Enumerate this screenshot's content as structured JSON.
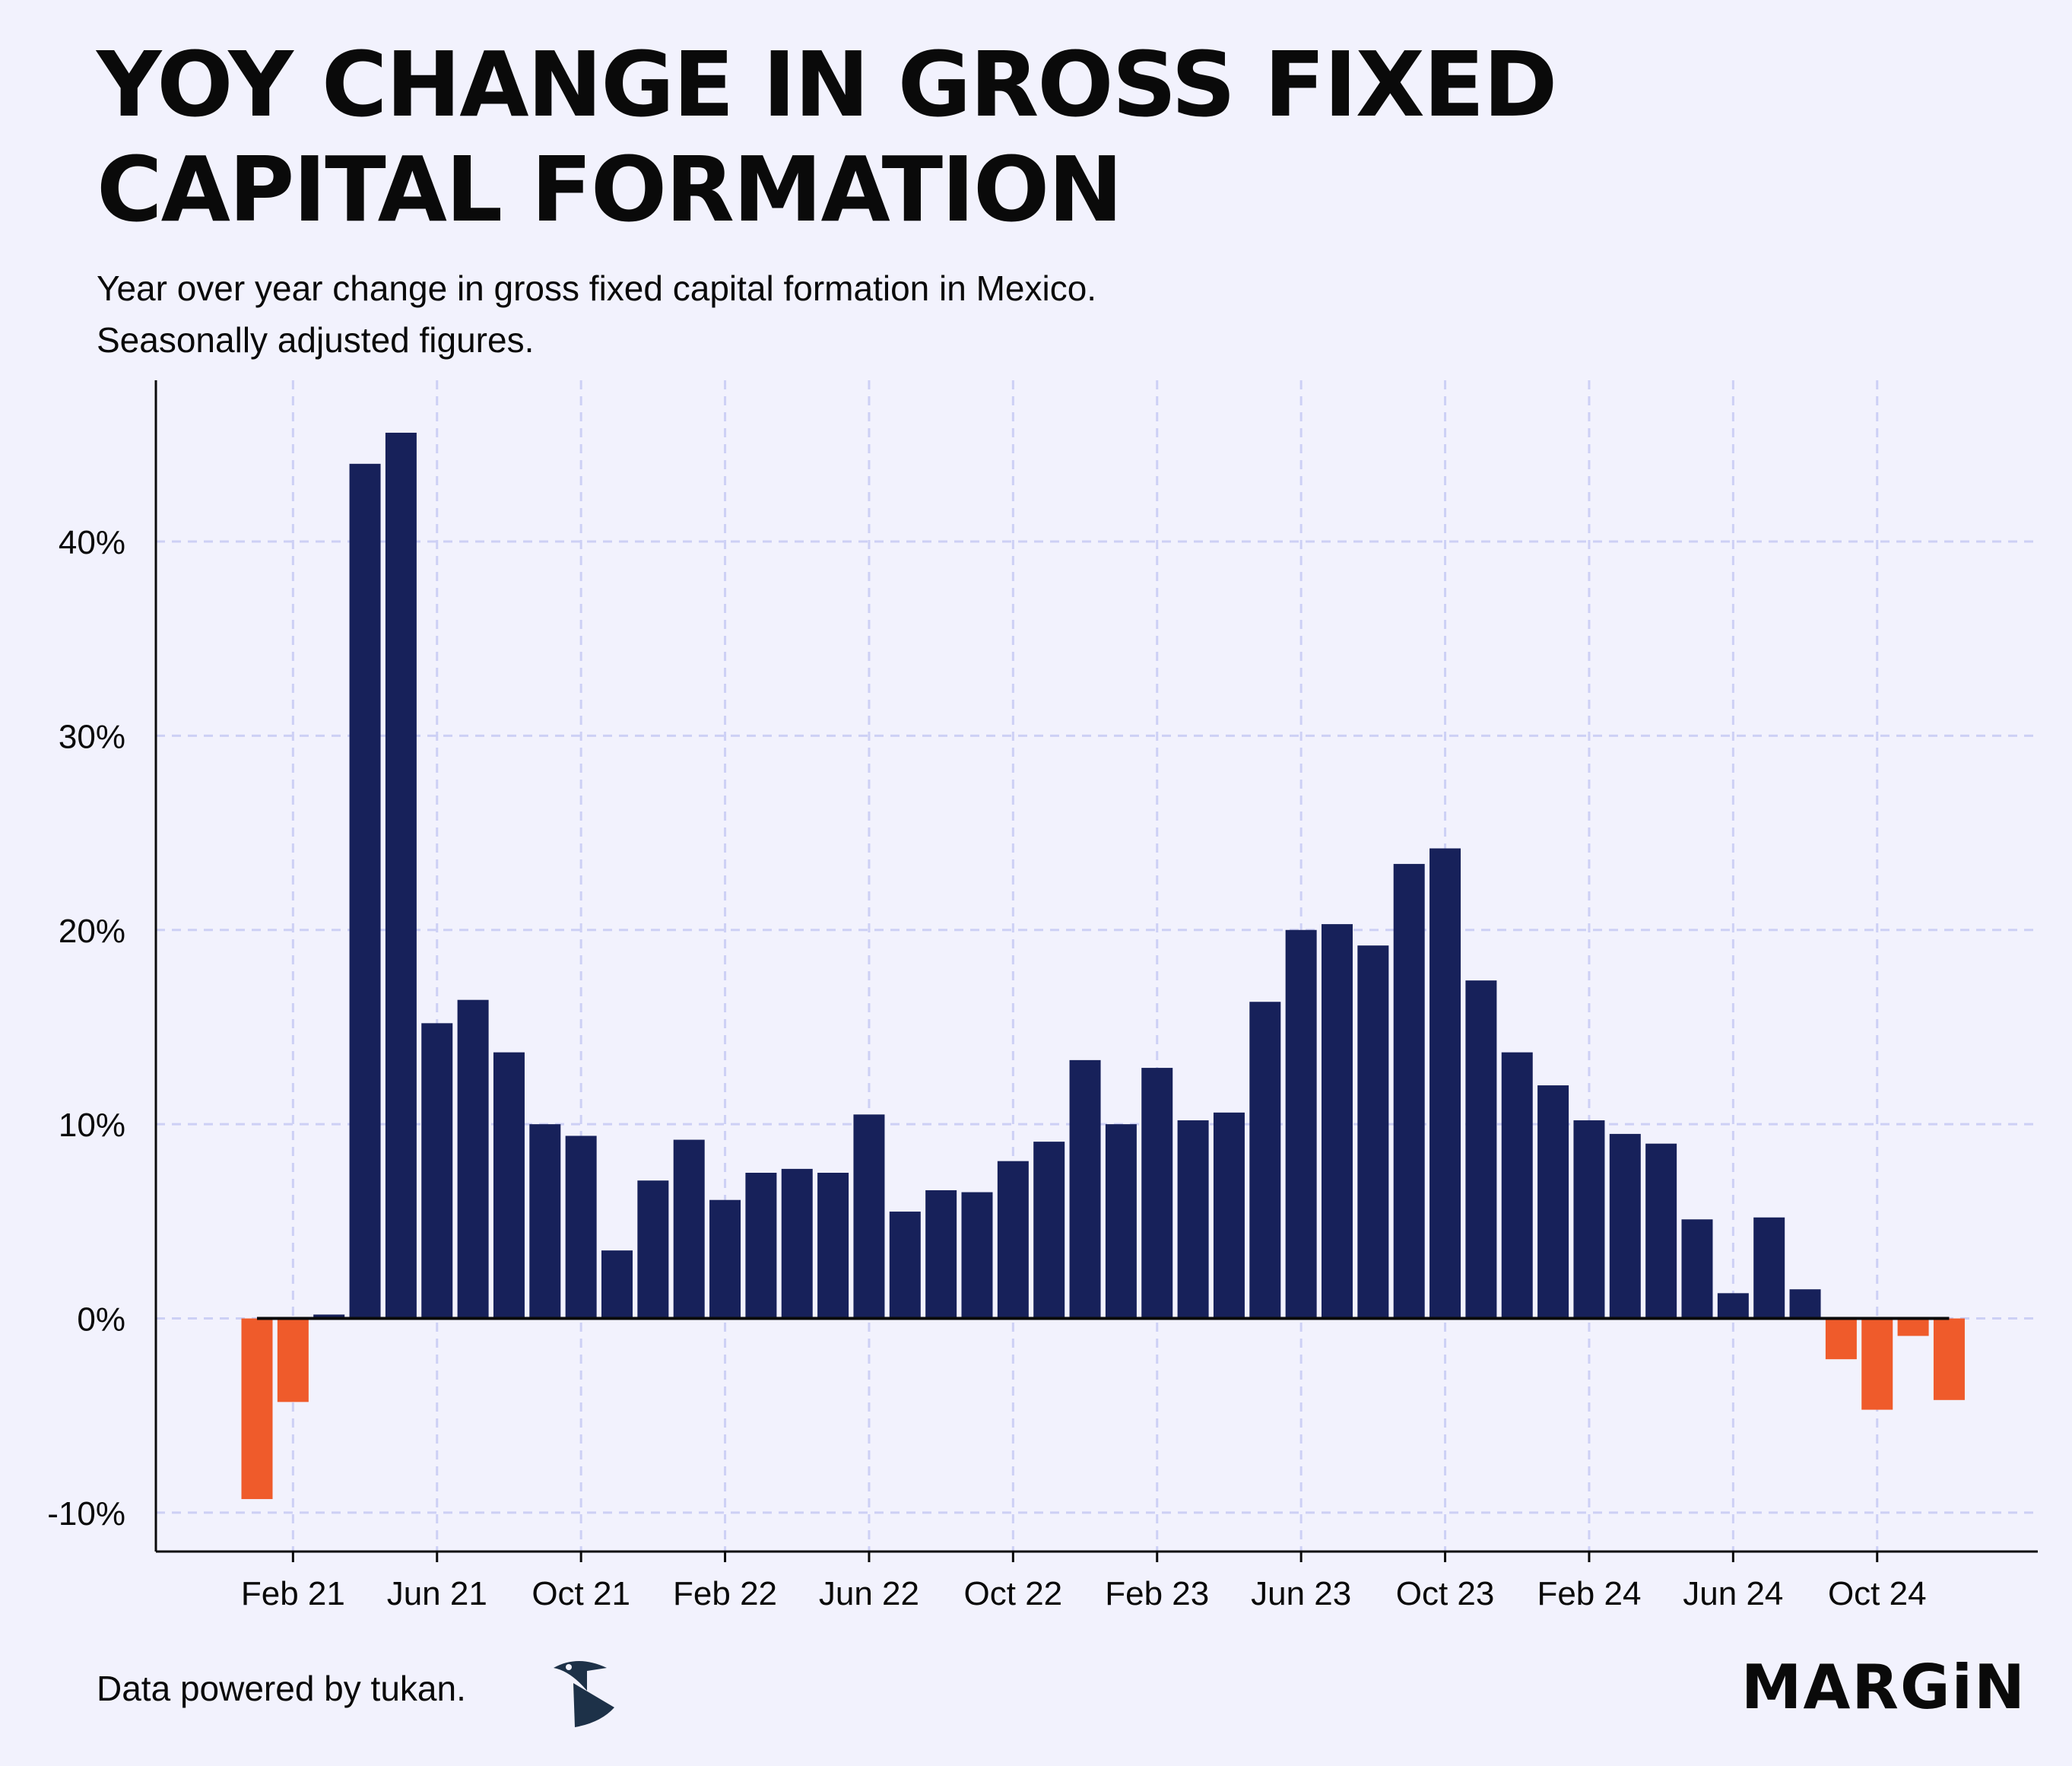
{
  "title_line1": "YOY CHANGE IN GROSS FIXED",
  "title_line2": "CAPITAL FORMATION",
  "subtitle_line1": "Year over year change in gross fixed capital formation in Mexico.",
  "subtitle_line2": "Seasonally adjusted figures.",
  "footer": {
    "source_text": "Data powered by tukan.",
    "brand_text": "MARGiN",
    "source_logo_icon": "tukan-logo-icon"
  },
  "colors": {
    "background": "#f2f2fd",
    "positive": "#17215a",
    "negative": "#ef5b2b",
    "grid": "#cdd0f5",
    "axis": "#0a0a0a"
  },
  "chart_data": {
    "type": "bar",
    "title": "YOY CHANGE IN GROSS FIXED CAPITAL FORMATION",
    "xlabel": "",
    "ylabel": "",
    "ylim": [
      -12,
      48.3
    ],
    "grid": true,
    "y_ticks": [
      -10,
      0,
      10,
      20,
      30,
      40
    ],
    "y_tick_labels": [
      "-10%",
      "0%",
      "10%",
      "20%",
      "30%",
      "40%"
    ],
    "x_tick_labels": [
      "Feb 21",
      "Jun 21",
      "Oct 21",
      "Feb 22",
      "Jun 22",
      "Oct 22",
      "Feb 23",
      "Jun 23",
      "Oct 23",
      "Feb 24",
      "Jun 24",
      "Oct 24"
    ],
    "x_tick_month_index": [
      1,
      5,
      9,
      13,
      17,
      21,
      25,
      29,
      33,
      37,
      41,
      45
    ],
    "categories": [
      "Jan 21",
      "Feb 21",
      "Mar 21",
      "Apr 21",
      "May 21",
      "Jun 21",
      "Jul 21",
      "Aug 21",
      "Sep 21",
      "Oct 21",
      "Nov 21",
      "Dec 21",
      "Jan 22",
      "Feb 22",
      "Mar 22",
      "Apr 22",
      "May 22",
      "Jun 22",
      "Jul 22",
      "Aug 22",
      "Sep 22",
      "Oct 22",
      "Nov 22",
      "Dec 22",
      "Jan 23",
      "Feb 23",
      "Mar 23",
      "Apr 23",
      "May 23",
      "Jun 23",
      "Jul 23",
      "Aug 23",
      "Sep 23",
      "Oct 23",
      "Nov 23",
      "Dec 23",
      "Jan 24",
      "Feb 24",
      "Mar 24",
      "Apr 24",
      "May 24",
      "Jun 24",
      "Jul 24",
      "Aug 24",
      "Sep 24",
      "Oct 24",
      "Nov 24",
      "Dec 24"
    ],
    "values": [
      -9.3,
      -4.3,
      0.2,
      44.0,
      45.6,
      15.2,
      16.4,
      13.7,
      10.0,
      9.4,
      3.5,
      7.1,
      9.2,
      6.1,
      7.5,
      7.7,
      7.5,
      10.5,
      5.5,
      6.6,
      6.5,
      8.1,
      9.1,
      13.3,
      10.0,
      12.9,
      10.2,
      10.6,
      16.3,
      20.0,
      20.3,
      19.2,
      23.4,
      24.2,
      17.4,
      13.7,
      12.0,
      10.2,
      9.5,
      9.0,
      5.1,
      1.3,
      5.2,
      1.5,
      -2.1,
      -4.7,
      -0.9,
      -4.2
    ]
  }
}
